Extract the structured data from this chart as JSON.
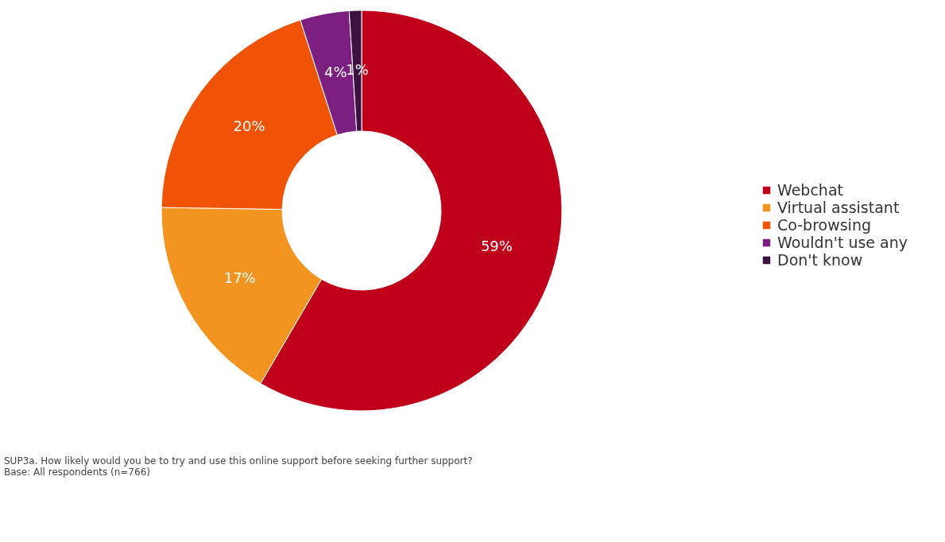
{
  "chart_data": {
    "type": "donut",
    "categories": [
      "Webchat",
      "Virtual assistant",
      "Co-browsing",
      "Wouldn't use any",
      "Don't know"
    ],
    "values": [
      59,
      17,
      20,
      4,
      1
    ],
    "value_labels": [
      "59%",
      "17%",
      "20%",
      "4%",
      "1%"
    ],
    "colors": [
      "#c0001a",
      "#f39420",
      "#f05206",
      "#7b1f80",
      "#3d1240"
    ],
    "legend": "right",
    "annotations": [
      "SUP3a. How likely would you be to try and use this online support before seeking further support?",
      "Base: All respondents (n=766)"
    ]
  }
}
